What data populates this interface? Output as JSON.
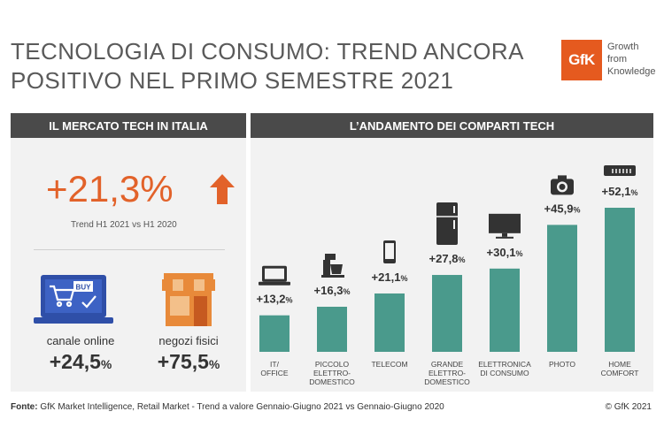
{
  "header": {
    "title_line1": "TECNOLOGIA DI CONSUMO: TREND ANCORA",
    "title_line2": "POSITIVO NEL PRIMO SEMESTRE 2021",
    "logo_text": "GfK",
    "tagline": [
      "Growth",
      "from",
      "Knowledge"
    ]
  },
  "left_panel": {
    "heading": "IL MERCATO TECH IN ITALIA",
    "trend_value": "+21,3%",
    "trend_label": "Trend H1 2021 vs H1 2020",
    "channels": [
      {
        "label": "canale online",
        "value": "+24,5",
        "unit": "%",
        "icon": "laptop-cart-icon"
      },
      {
        "label": "negozi fisici",
        "value": "+75,5",
        "unit": "%",
        "icon": "store-icon"
      }
    ],
    "buy_text": "BUY"
  },
  "right_panel": {
    "heading": "L’ANDAMENTO DEI COMPARTI TECH"
  },
  "chart_data": {
    "type": "bar",
    "categories": [
      [
        "IT/",
        "OFFICE"
      ],
      [
        "PICCOLO",
        "ELETTRO-",
        "DOMESTICO"
      ],
      [
        "TELECOM"
      ],
      [
        "GRANDE",
        "ELETTRO-",
        "DOMESTICO"
      ],
      [
        "ELETTRONICA",
        "DI CONSUMO"
      ],
      [
        "PHOTO"
      ],
      [
        "HOME",
        "COMFORT"
      ]
    ],
    "values": [
      13.2,
      16.3,
      21.1,
      27.8,
      30.1,
      45.9,
      52.1
    ],
    "value_labels": [
      "+13,2",
      "+16,3",
      "+21,1",
      "+27,8",
      "+30,1",
      "+45,9",
      "+52,1"
    ],
    "unit": "%",
    "icons": [
      "laptop-icon",
      "food-processor-icon",
      "smartphone-icon",
      "refrigerator-icon",
      "tv-icon",
      "camera-icon",
      "air-conditioner-icon"
    ],
    "bar_color": "#4a9a8c",
    "ylim": [
      0,
      52.1
    ]
  },
  "footer": {
    "source_label": "Fonte:",
    "source_text": "GfK Market Intelligence, Retail Market - Trend a valore Gennaio-Giugno 2021 vs Gennaio-Giugno 2020",
    "copyright": "© GfK 2021"
  },
  "colors": {
    "accent_orange": "#e2622a",
    "bar_teal": "#4a9a8c",
    "header_dark": "#4a4a4a",
    "online_blue": "#2f4fa8"
  }
}
